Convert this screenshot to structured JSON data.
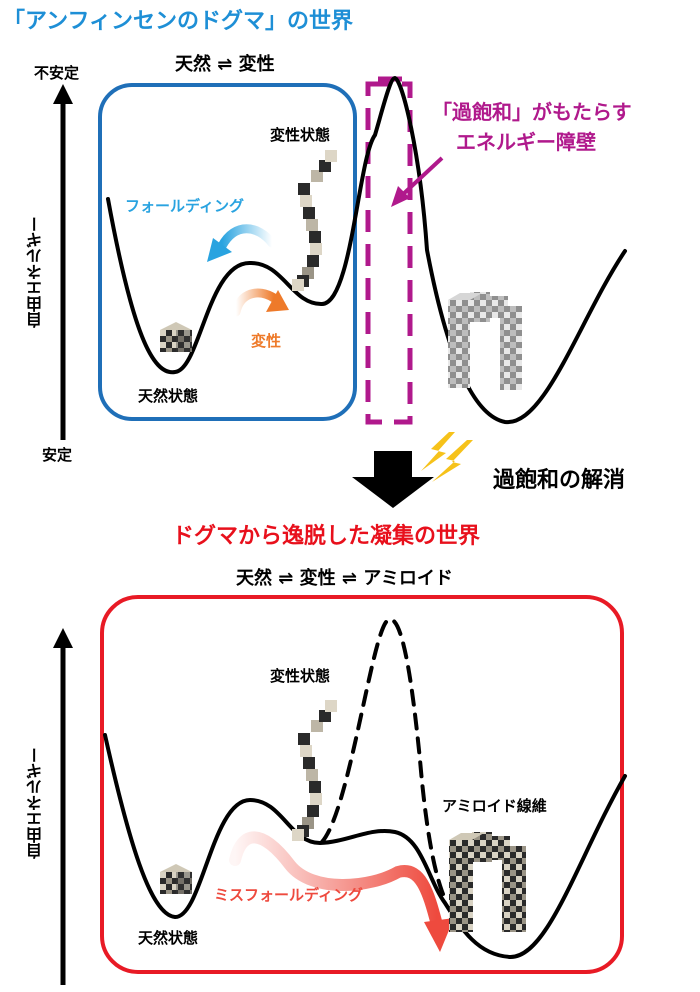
{
  "top_section": {
    "title": "「アンフィンセンのドグマ」の世界",
    "equilibrium": "天然 ⇌ 変性",
    "axis_label": "自由エネルギー",
    "axis_top": "不安定",
    "axis_bottom": "安定",
    "denatured_label": "変性状態",
    "native_label": "天然状態",
    "folding_arrow_label": "フォールディング",
    "denature_arrow_label": "変性",
    "barrier_note_line1": "「過飽和」がもたらす",
    "barrier_note_line2": "エネルギー障壁"
  },
  "transition": {
    "label": "過飽和の解消"
  },
  "bottom_section": {
    "title": "ドグマから逸脱した凝集の世界",
    "equilibrium": "天然 ⇌ 変性 ⇌ アミロイド",
    "axis_label": "自由エネルギー",
    "denatured_label": "変性状態",
    "native_label": "天然状態",
    "amyloid_label": "アミロイド線維",
    "misfolding_arrow_label": "ミスフォールディング"
  },
  "colors": {
    "top_title": "#1e8fd6",
    "top_box": "#1f6fb8",
    "barrier_note": "#b0198c",
    "barrier_box": "#b0198c",
    "folding_arrow": "#29a3e0",
    "denature_arrow": "#ee7a2a",
    "bottom_title": "#e8101c",
    "bottom_box": "#e81a25",
    "misfolding_arrow": "#ee4a3e",
    "lightning": "#f6c21a"
  }
}
